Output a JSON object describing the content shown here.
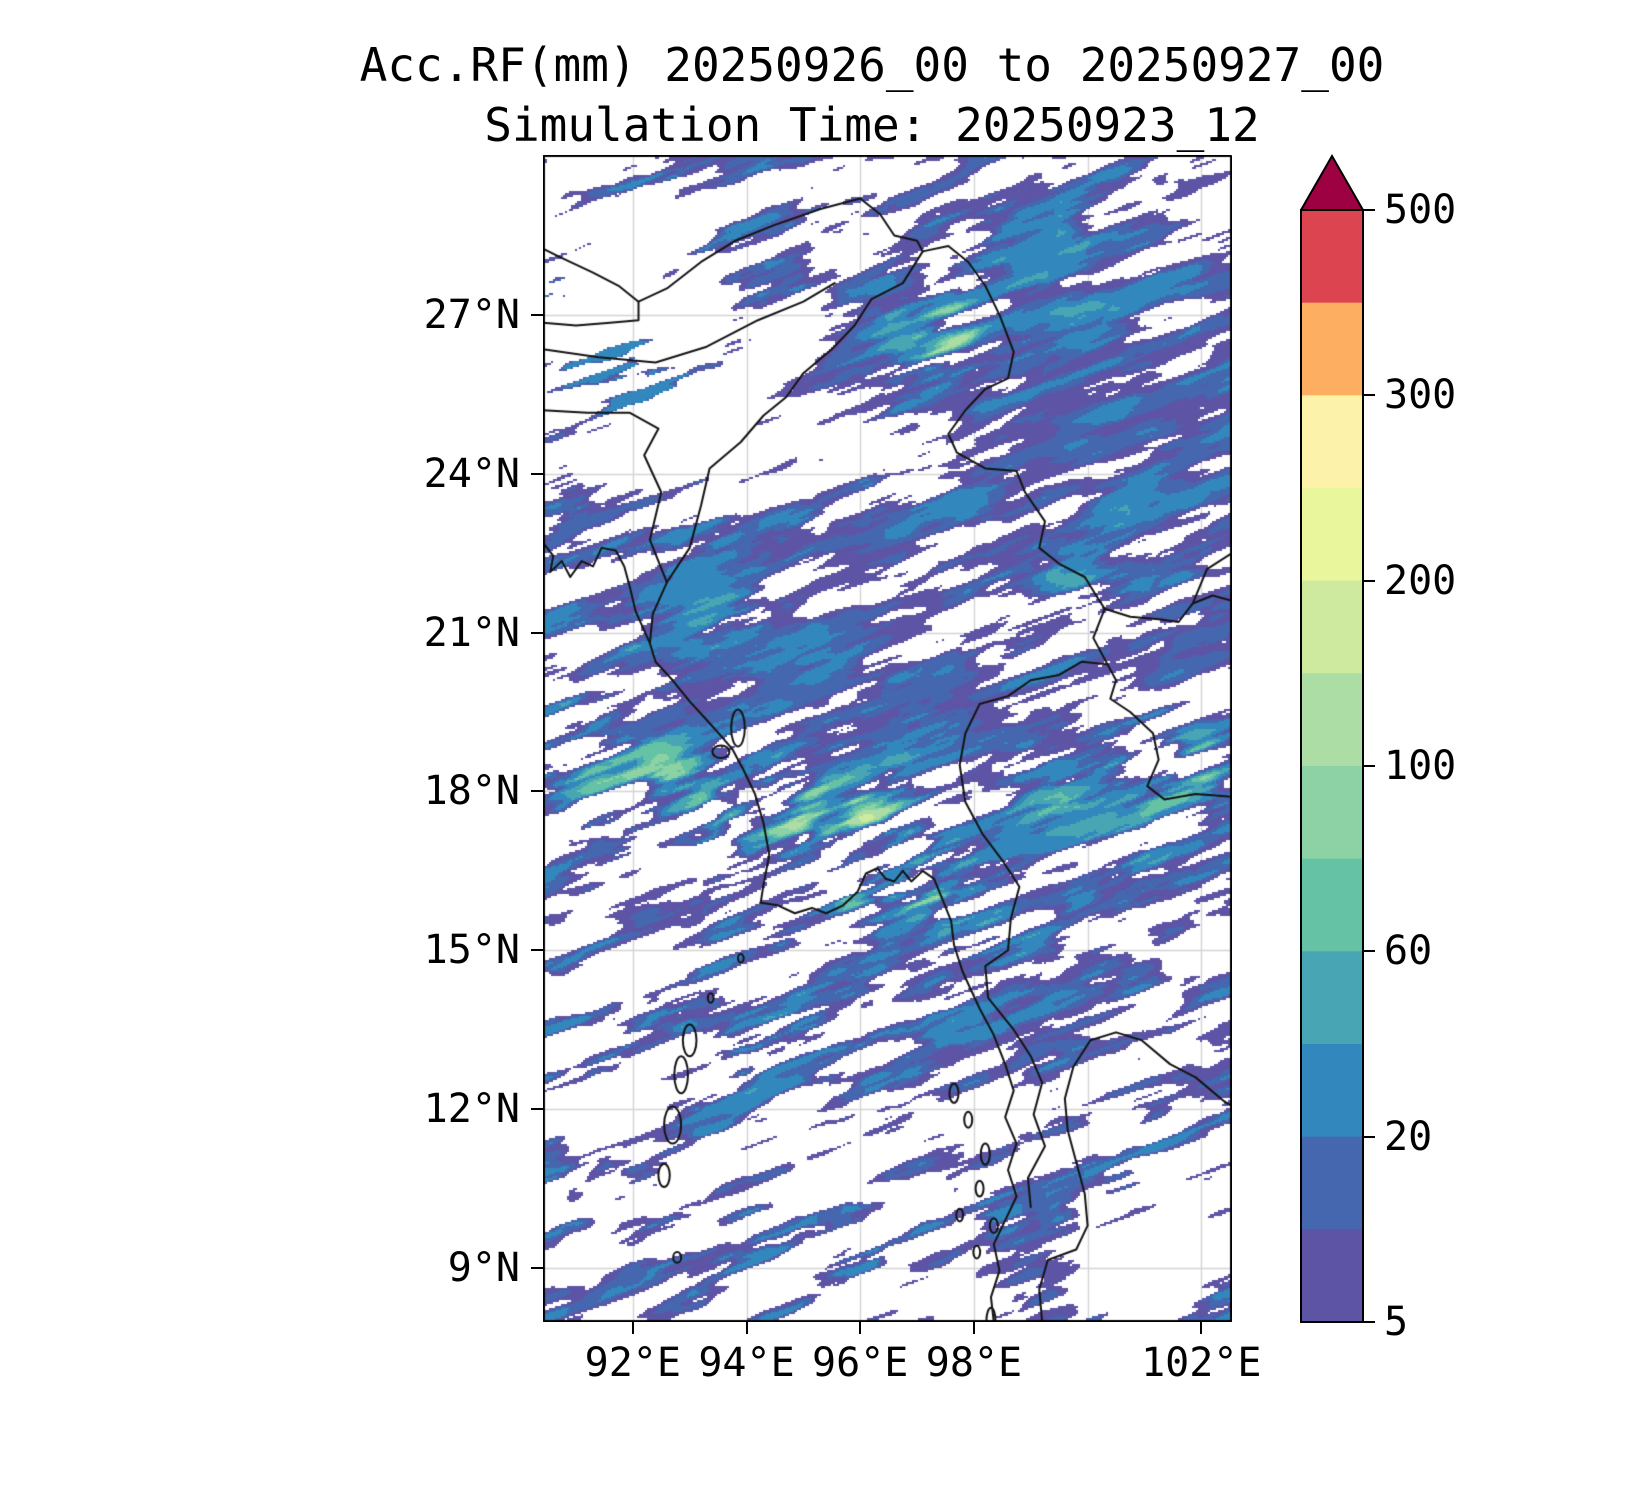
{
  "title": {
    "line1": "Acc.RF(mm) 20250926_00 to 20250927_00",
    "line2": "Simulation Time: 20250923_12"
  },
  "chart_data": {
    "type": "heatmap",
    "title": "Acc.RF(mm) 20250926_00 to 20250927_00",
    "subtitle": "Simulation Time: 20250923_12",
    "variable": "Accumulated rainfall",
    "units": "mm",
    "background": "#ffffff",
    "grid_color": "#d4d4d4",
    "coast_color": "#141414",
    "grid": true,
    "x_axis": {
      "range": [
        90.42,
        102.54
      ],
      "ticks": [
        {
          "lon": 92,
          "label": "92°E"
        },
        {
          "lon": 94,
          "label": "94°E"
        },
        {
          "lon": 96,
          "label": "96°E"
        },
        {
          "lon": 98,
          "label": "98°E"
        },
        {
          "lon": 102,
          "label": "102°E"
        }
      ],
      "gridline_lons": [
        92,
        94,
        96,
        98,
        100,
        102
      ]
    },
    "y_axis": {
      "range": [
        7.98,
        30.02
      ],
      "ticks": [
        {
          "lat": 27,
          "label": "27°N"
        },
        {
          "lat": 24,
          "label": "24°N"
        },
        {
          "lat": 21,
          "label": "21°N"
        },
        {
          "lat": 18,
          "label": "18°N"
        },
        {
          "lat": 15,
          "label": "15°N"
        },
        {
          "lat": 12,
          "label": "12°N"
        },
        {
          "lat": 9,
          "label": "9°N"
        }
      ],
      "gridline_lats": [
        9,
        12,
        15,
        18,
        21,
        24,
        27
      ]
    },
    "colorbar": {
      "boundaries": [
        5,
        10,
        20,
        40,
        60,
        80,
        100,
        150,
        200,
        250,
        300,
        400,
        500
      ],
      "tick_labels": [
        {
          "value": 500,
          "label": "500"
        },
        {
          "value": 300,
          "label": "300"
        },
        {
          "value": 200,
          "label": "200"
        },
        {
          "value": 100,
          "label": "100"
        },
        {
          "value": 60,
          "label": "60"
        },
        {
          "value": 20,
          "label": "20"
        },
        {
          "value": 5,
          "label": "5"
        }
      ],
      "band_colors": [
        "#5e54a5",
        "#4467af",
        "#3288bd",
        "#48a5b3",
        "#66c2a5",
        "#8cd2a4",
        "#abdda4",
        "#cdea9e",
        "#e9f69b",
        "#fdf2a9",
        "#fdae61",
        "#dc4450"
      ],
      "over_color": "#9e0142",
      "under": "white (no shading below 5 mm)"
    },
    "field_summary": "Speckled NE-SW banded rainfall field: widespread 5-60 mm (purple/blue) over Myanmar, NE India hills and the Bay of Bengal; 100-250 mm (green to pale yellow) arc along the Rakhine coast and Irrawaddy delta near 16-19N / 93-97E; dense light rain over far NE (25-29N, 96-102E); mostly rain-free NW of 24N west of 94E and patchy streaks over the southern sea.",
    "field_gen": {
      "seed": 77,
      "streak_angle_deg": 20,
      "streak_scale": [
        88,
        15
      ],
      "contrast": 1.9,
      "coverage_base": 0.52,
      "coverage_mods": [
        [
          91.5,
          27.0,
          2.6,
          2.8,
          -0.52
        ],
        [
          93.6,
          24.6,
          1.5,
          1.4,
          -0.3
        ],
        [
          96.4,
          24.3,
          1.4,
          1.2,
          -0.34
        ],
        [
          99.6,
          25.6,
          3.0,
          3.2,
          0.34
        ],
        [
          95.0,
          19.6,
          3.4,
          2.2,
          0.3
        ],
        [
          100.4,
          20.0,
          2.2,
          2.2,
          0.16
        ],
        [
          91.9,
          17.2,
          1.4,
          0.9,
          -0.3
        ],
        [
          92.6,
          10.6,
          2.6,
          1.9,
          -0.24
        ],
        [
          96.3,
          9.3,
          1.6,
          1.6,
          -0.26
        ],
        [
          101.2,
          9.8,
          1.8,
          2.0,
          -0.28
        ],
        [
          90.9,
          13.9,
          1.5,
          1.5,
          -0.18
        ]
      ],
      "intensity_base": 22,
      "intensity_mods": [
        [
          94.3,
          17.8,
          1.7,
          1.1,
          85
        ],
        [
          96.4,
          16.6,
          1.0,
          0.9,
          150
        ],
        [
          95.5,
          17.5,
          1.2,
          0.9,
          55
        ],
        [
          92.3,
          18.3,
          1.2,
          0.8,
          70
        ],
        [
          90.8,
          18.6,
          1.2,
          0.9,
          40
        ],
        [
          93.2,
          20.9,
          1.4,
          0.8,
          45
        ],
        [
          100.3,
          18.2,
          1.4,
          1.1,
          60
        ],
        [
          101.7,
          18.6,
          0.9,
          0.8,
          55
        ],
        [
          98.1,
          27.2,
          2.0,
          1.5,
          35
        ],
        [
          97.6,
          26.3,
          0.9,
          0.7,
          60
        ],
        [
          99.9,
          21.9,
          1.6,
          1.4,
          22
        ],
        [
          94.6,
          13.4,
          2.4,
          1.2,
          26
        ],
        [
          97.8,
          15.2,
          1.2,
          1.0,
          40
        ]
      ]
    },
    "geo": {
      "polylines": [
        [
          [
            90.42,
            22.7
          ],
          [
            90.6,
            22.45
          ],
          [
            90.55,
            22.15
          ],
          [
            90.75,
            22.35
          ],
          [
            90.9,
            22.05
          ],
          [
            91.1,
            22.35
          ],
          [
            91.3,
            22.25
          ],
          [
            91.45,
            22.6
          ],
          [
            91.7,
            22.55
          ],
          [
            91.85,
            22.25
          ],
          [
            91.95,
            21.85
          ],
          [
            92.05,
            21.4
          ],
          [
            92.3,
            20.8
          ],
          [
            92.4,
            20.45
          ],
          [
            92.7,
            20.1
          ],
          [
            93.0,
            19.7
          ],
          [
            93.3,
            19.35
          ],
          [
            93.55,
            19.05
          ],
          [
            93.75,
            18.8
          ],
          [
            93.95,
            18.4
          ],
          [
            94.15,
            17.95
          ],
          [
            94.3,
            17.4
          ],
          [
            94.4,
            16.8
          ],
          [
            94.3,
            16.25
          ],
          [
            94.25,
            15.9
          ],
          [
            94.55,
            15.85
          ],
          [
            94.85,
            15.7
          ],
          [
            95.15,
            15.8
          ],
          [
            95.4,
            15.7
          ],
          [
            95.7,
            15.85
          ],
          [
            95.95,
            16.1
          ],
          [
            96.1,
            16.45
          ],
          [
            96.3,
            16.55
          ],
          [
            96.45,
            16.35
          ],
          [
            96.6,
            16.3
          ],
          [
            96.75,
            16.5
          ],
          [
            96.9,
            16.3
          ],
          [
            97.1,
            16.5
          ],
          [
            97.3,
            16.35
          ],
          [
            97.45,
            15.95
          ],
          [
            97.6,
            15.55
          ],
          [
            97.65,
            15.1
          ],
          [
            97.8,
            14.6
          ],
          [
            98.1,
            13.9
          ],
          [
            98.35,
            13.4
          ],
          [
            98.55,
            12.85
          ],
          [
            98.7,
            12.35
          ],
          [
            98.55,
            11.85
          ],
          [
            98.75,
            11.35
          ],
          [
            98.6,
            10.85
          ],
          [
            98.75,
            10.35
          ],
          [
            98.55,
            9.9
          ],
          [
            98.35,
            9.45
          ],
          [
            98.45,
            8.95
          ],
          [
            98.3,
            8.45
          ],
          [
            98.35,
            7.98
          ]
        ],
        [
          [
            99.2,
            7.98
          ],
          [
            99.15,
            8.6
          ],
          [
            99.3,
            9.15
          ],
          [
            99.8,
            9.35
          ],
          [
            100.0,
            9.8
          ],
          [
            99.95,
            10.4
          ],
          [
            99.8,
            11.0
          ],
          [
            99.65,
            11.6
          ],
          [
            99.6,
            12.2
          ],
          [
            99.75,
            12.8
          ],
          [
            100.05,
            13.3
          ],
          [
            100.5,
            13.45
          ],
          [
            100.95,
            13.3
          ],
          [
            101.45,
            12.85
          ],
          [
            101.9,
            12.6
          ],
          [
            102.4,
            12.15
          ],
          [
            102.54,
            12.05
          ]
        ],
        [
          [
            92.3,
            20.8
          ],
          [
            92.35,
            21.35
          ],
          [
            92.6,
            21.95
          ],
          [
            92.3,
            22.75
          ],
          [
            92.5,
            23.65
          ],
          [
            92.2,
            24.35
          ],
          [
            92.45,
            24.85
          ],
          [
            91.95,
            25.15
          ],
          [
            91.2,
            25.15
          ],
          [
            90.42,
            25.2
          ]
        ],
        [
          [
            92.6,
            21.95
          ],
          [
            93.0,
            22.6
          ],
          [
            93.2,
            23.4
          ],
          [
            93.35,
            24.1
          ],
          [
            93.9,
            24.6
          ],
          [
            94.3,
            25.1
          ],
          [
            94.7,
            25.45
          ],
          [
            95.0,
            25.9
          ],
          [
            95.5,
            26.35
          ],
          [
            95.9,
            26.8
          ],
          [
            96.2,
            27.3
          ],
          [
            96.75,
            27.6
          ],
          [
            97.1,
            28.2
          ]
        ],
        [
          [
            97.1,
            28.2
          ],
          [
            97.55,
            28.3
          ],
          [
            97.9,
            28.0
          ],
          [
            98.2,
            27.55
          ],
          [
            98.45,
            27.0
          ],
          [
            98.7,
            26.3
          ],
          [
            98.6,
            25.8
          ],
          [
            98.2,
            25.6
          ],
          [
            97.85,
            25.2
          ],
          [
            97.55,
            24.75
          ],
          [
            97.7,
            24.4
          ],
          [
            98.2,
            24.1
          ],
          [
            98.75,
            24.05
          ],
          [
            98.9,
            23.65
          ],
          [
            99.25,
            23.1
          ],
          [
            99.15,
            22.6
          ],
          [
            99.5,
            22.3
          ],
          [
            99.95,
            22.05
          ],
          [
            100.15,
            21.7
          ],
          [
            100.3,
            21.45
          ]
        ],
        [
          [
            100.3,
            21.45
          ],
          [
            100.1,
            20.9
          ],
          [
            100.35,
            20.4
          ],
          [
            99.9,
            20.45
          ],
          [
            99.5,
            20.2
          ],
          [
            99.0,
            20.1
          ],
          [
            98.6,
            19.8
          ],
          [
            98.1,
            19.65
          ],
          [
            97.85,
            19.1
          ],
          [
            97.75,
            18.5
          ],
          [
            97.85,
            17.8
          ],
          [
            98.15,
            17.2
          ],
          [
            98.5,
            16.7
          ],
          [
            98.8,
            16.2
          ],
          [
            98.65,
            15.6
          ],
          [
            98.6,
            15.0
          ],
          [
            98.2,
            14.7
          ],
          [
            98.25,
            14.1
          ],
          [
            98.7,
            13.5
          ],
          [
            99.0,
            13.0
          ],
          [
            99.2,
            12.5
          ],
          [
            99.05,
            11.9
          ],
          [
            99.25,
            11.3
          ],
          [
            98.95,
            10.7
          ],
          [
            99.0,
            10.15
          ]
        ],
        [
          [
            100.3,
            21.45
          ],
          [
            100.75,
            21.3
          ],
          [
            101.25,
            21.25
          ],
          [
            101.6,
            21.2
          ],
          [
            101.85,
            21.55
          ],
          [
            102.2,
            21.7
          ],
          [
            102.54,
            21.6
          ]
        ],
        [
          [
            101.85,
            21.55
          ],
          [
            102.1,
            22.2
          ],
          [
            102.54,
            22.5
          ]
        ],
        [
          [
            100.35,
            20.4
          ],
          [
            100.5,
            20.1
          ],
          [
            100.4,
            19.75
          ],
          [
            100.75,
            19.5
          ],
          [
            101.15,
            19.1
          ],
          [
            101.25,
            18.6
          ],
          [
            101.05,
            18.1
          ],
          [
            101.35,
            17.85
          ],
          [
            101.9,
            17.95
          ],
          [
            102.54,
            17.9
          ]
        ],
        [
          [
            90.42,
            26.85
          ],
          [
            91.0,
            26.8
          ],
          [
            91.6,
            26.85
          ],
          [
            92.1,
            26.9
          ],
          [
            92.1,
            27.25
          ],
          [
            91.75,
            27.55
          ],
          [
            91.3,
            27.8
          ],
          [
            90.7,
            28.1
          ],
          [
            90.42,
            28.25
          ]
        ],
        [
          [
            92.1,
            27.25
          ],
          [
            92.6,
            27.5
          ],
          [
            93.2,
            28.0
          ],
          [
            93.8,
            28.4
          ],
          [
            94.5,
            28.7
          ],
          [
            95.3,
            29.0
          ],
          [
            96.0,
            29.2
          ],
          [
            96.35,
            28.9
          ],
          [
            96.6,
            28.5
          ],
          [
            97.0,
            28.4
          ],
          [
            97.1,
            28.2
          ]
        ],
        [
          [
            90.42,
            26.35
          ],
          [
            91.4,
            26.2
          ],
          [
            92.4,
            26.1
          ],
          [
            93.3,
            26.4
          ],
          [
            94.2,
            26.9
          ],
          [
            95.0,
            27.25
          ],
          [
            95.55,
            27.6
          ]
        ]
      ],
      "islands": [
        [
          93.0,
          13.3,
          0.12,
          0.3
        ],
        [
          92.85,
          12.65,
          0.12,
          0.35
        ],
        [
          92.7,
          11.7,
          0.15,
          0.35
        ],
        [
          92.55,
          10.75,
          0.1,
          0.22
        ],
        [
          92.78,
          9.2,
          0.07,
          0.1
        ],
        [
          93.85,
          19.2,
          0.12,
          0.35
        ],
        [
          93.55,
          18.75,
          0.15,
          0.12
        ],
        [
          93.9,
          14.85,
          0.05,
          0.08
        ],
        [
          93.37,
          14.1,
          0.05,
          0.09
        ],
        [
          97.65,
          12.3,
          0.08,
          0.18
        ],
        [
          97.9,
          11.8,
          0.07,
          0.15
        ],
        [
          98.2,
          11.15,
          0.08,
          0.2
        ],
        [
          98.1,
          10.5,
          0.07,
          0.15
        ],
        [
          98.35,
          9.8,
          0.07,
          0.14
        ],
        [
          97.75,
          10.0,
          0.06,
          0.12
        ],
        [
          98.05,
          9.3,
          0.06,
          0.12
        ],
        [
          98.3,
          8.0,
          0.08,
          0.25
        ]
      ]
    }
  }
}
